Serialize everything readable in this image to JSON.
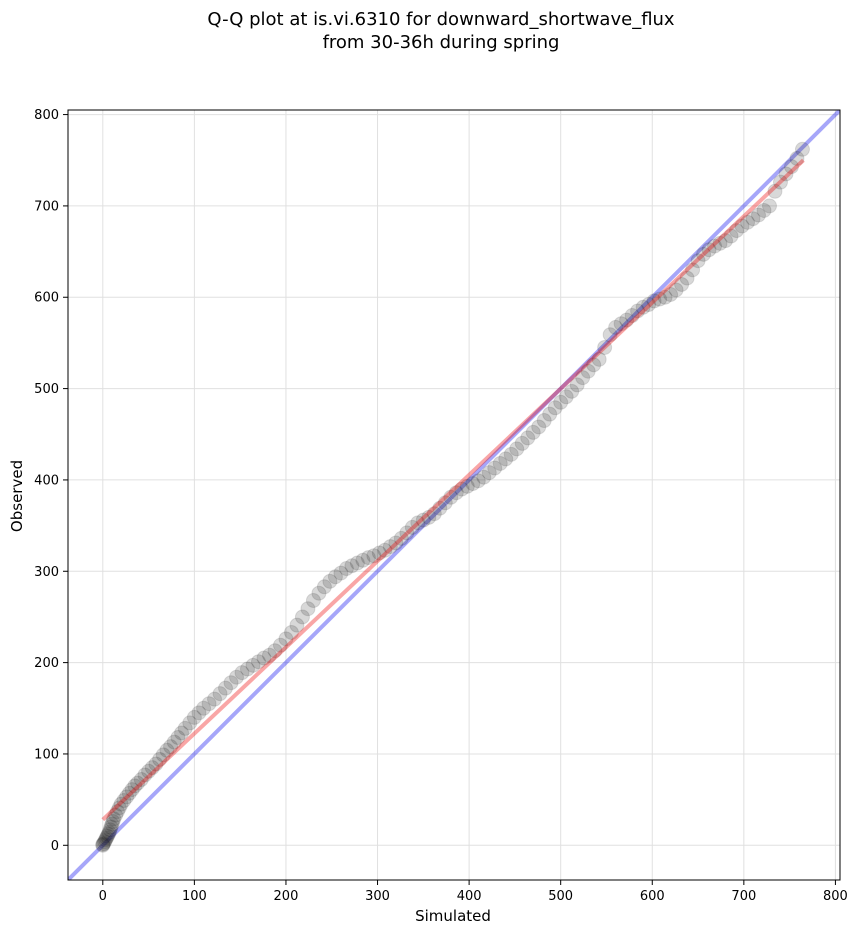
{
  "colors": {
    "points": "#1a1a1a",
    "identity_line": "#0000ee",
    "fit_line": "#ee0000",
    "grid": "#e0e0e0"
  },
  "chart_data": {
    "type": "scatter",
    "title": "Q-Q plot at is.vi.6310 for downward_shortwave_flux\nfrom 30-36h during spring",
    "xlabel": "Simulated",
    "ylabel": "Observed",
    "xlim": [
      -38,
      805
    ],
    "ylim": [
      -38,
      805
    ],
    "xticks": [
      0,
      100,
      200,
      300,
      400,
      500,
      600,
      700,
      800
    ],
    "yticks": [
      0,
      100,
      200,
      300,
      400,
      500,
      600,
      700,
      800
    ],
    "grid": true,
    "identity_line": {
      "x": [
        -38,
        805
      ],
      "y": [
        -38,
        805
      ]
    },
    "fit_line": {
      "x": [
        0,
        765
      ],
      "y": [
        28,
        750
      ]
    },
    "points": [
      [
        0,
        0
      ],
      [
        0,
        1
      ],
      [
        1,
        2
      ],
      [
        2,
        4
      ],
      [
        3,
        6
      ],
      [
        4,
        8
      ],
      [
        5,
        10
      ],
      [
        6,
        12
      ],
      [
        7,
        14
      ],
      [
        8,
        17
      ],
      [
        9,
        20
      ],
      [
        10,
        23
      ],
      [
        11,
        26
      ],
      [
        12,
        29
      ],
      [
        14,
        33
      ],
      [
        16,
        37
      ],
      [
        18,
        41
      ],
      [
        20,
        45
      ],
      [
        23,
        49
      ],
      [
        26,
        53
      ],
      [
        29,
        57
      ],
      [
        32,
        61
      ],
      [
        35,
        65
      ],
      [
        38,
        68
      ],
      [
        42,
        72
      ],
      [
        46,
        77
      ],
      [
        50,
        81
      ],
      [
        54,
        85
      ],
      [
        58,
        89
      ],
      [
        62,
        94
      ],
      [
        66,
        99
      ],
      [
        70,
        104
      ],
      [
        74,
        108
      ],
      [
        78,
        113
      ],
      [
        82,
        118
      ],
      [
        86,
        123
      ],
      [
        90,
        128
      ],
      [
        95,
        134
      ],
      [
        100,
        140
      ],
      [
        105,
        145
      ],
      [
        110,
        150
      ],
      [
        116,
        155
      ],
      [
        122,
        160
      ],
      [
        128,
        166
      ],
      [
        134,
        172
      ],
      [
        140,
        178
      ],
      [
        146,
        184
      ],
      [
        152,
        189
      ],
      [
        158,
        193
      ],
      [
        164,
        197
      ],
      [
        170,
        201
      ],
      [
        176,
        205
      ],
      [
        182,
        208
      ],
      [
        188,
        213
      ],
      [
        194,
        219
      ],
      [
        200,
        226
      ],
      [
        206,
        233
      ],
      [
        212,
        241
      ],
      [
        218,
        250
      ],
      [
        224,
        259
      ],
      [
        230,
        268
      ],
      [
        236,
        276
      ],
      [
        242,
        283
      ],
      [
        248,
        289
      ],
      [
        254,
        294
      ],
      [
        260,
        298
      ],
      [
        266,
        303
      ],
      [
        272,
        306
      ],
      [
        278,
        309
      ],
      [
        284,
        312
      ],
      [
        290,
        315
      ],
      [
        296,
        317
      ],
      [
        302,
        320
      ],
      [
        308,
        323
      ],
      [
        314,
        327
      ],
      [
        320,
        331
      ],
      [
        326,
        336
      ],
      [
        332,
        342
      ],
      [
        338,
        348
      ],
      [
        344,
        353
      ],
      [
        350,
        356
      ],
      [
        356,
        359
      ],
      [
        362,
        363
      ],
      [
        368,
        369
      ],
      [
        374,
        375
      ],
      [
        380,
        381
      ],
      [
        386,
        386
      ],
      [
        392,
        390
      ],
      [
        398,
        393
      ],
      [
        404,
        396
      ],
      [
        410,
        399
      ],
      [
        416,
        403
      ],
      [
        422,
        408
      ],
      [
        428,
        413
      ],
      [
        434,
        418
      ],
      [
        440,
        423
      ],
      [
        446,
        428
      ],
      [
        452,
        434
      ],
      [
        458,
        440
      ],
      [
        464,
        446
      ],
      [
        470,
        452
      ],
      [
        476,
        458
      ],
      [
        482,
        465
      ],
      [
        488,
        472
      ],
      [
        494,
        479
      ],
      [
        500,
        485
      ],
      [
        506,
        491
      ],
      [
        512,
        497
      ],
      [
        518,
        504
      ],
      [
        524,
        512
      ],
      [
        530,
        519
      ],
      [
        536,
        526
      ],
      [
        542,
        532
      ],
      [
        548,
        545
      ],
      [
        554,
        559
      ],
      [
        560,
        567
      ],
      [
        566,
        571
      ],
      [
        572,
        575
      ],
      [
        578,
        580
      ],
      [
        584,
        585
      ],
      [
        590,
        589
      ],
      [
        596,
        592
      ],
      [
        602,
        596
      ],
      [
        608,
        598
      ],
      [
        614,
        600
      ],
      [
        620,
        603
      ],
      [
        626,
        608
      ],
      [
        632,
        614
      ],
      [
        638,
        621
      ],
      [
        644,
        630
      ],
      [
        650,
        640
      ],
      [
        656,
        647
      ],
      [
        662,
        652
      ],
      [
        668,
        656
      ],
      [
        674,
        659
      ],
      [
        680,
        662
      ],
      [
        686,
        667
      ],
      [
        692,
        673
      ],
      [
        698,
        678
      ],
      [
        704,
        682
      ],
      [
        710,
        686
      ],
      [
        716,
        690
      ],
      [
        722,
        695
      ],
      [
        728,
        700
      ],
      [
        734,
        716
      ],
      [
        740,
        726
      ],
      [
        746,
        735
      ],
      [
        752,
        743
      ],
      [
        758,
        752
      ],
      [
        764,
        762
      ]
    ]
  }
}
